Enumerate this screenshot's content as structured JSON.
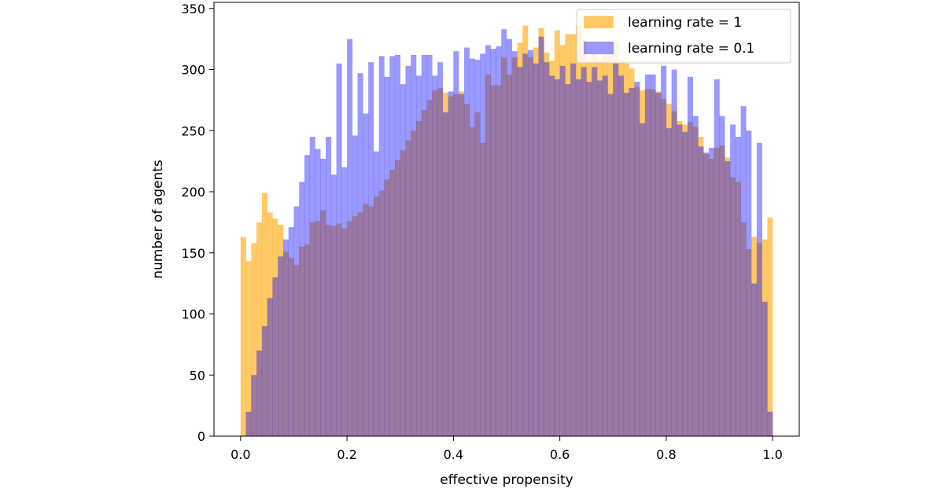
{
  "chart_data": {
    "type": "histogram",
    "xlabel": "effective propensity",
    "ylabel": "number of agents",
    "xlim": [
      -0.05,
      1.05
    ],
    "ylim": [
      0,
      355
    ],
    "x_ticks": [
      0.0,
      0.2,
      0.4,
      0.6,
      0.8,
      1.0
    ],
    "x_tick_labels": [
      "0.0",
      "0.2",
      "0.4",
      "0.6",
      "0.8",
      "1.0"
    ],
    "y_ticks": [
      0,
      50,
      100,
      150,
      200,
      250,
      300,
      350
    ],
    "y_tick_labels": [
      "0",
      "50",
      "100",
      "150",
      "200",
      "250",
      "300",
      "350"
    ],
    "bins": 100,
    "bin_range": [
      0,
      1
    ],
    "grid": false,
    "legend_position": "top-right",
    "series": [
      {
        "name": "learning rate = 1",
        "color": "#ffa500",
        "alpha": 0.6,
        "values": [
          163,
          143,
          158,
          175,
          199,
          183,
          178,
          173,
          151,
          146,
          140,
          155,
          157,
          175,
          176,
          185,
          173,
          172,
          174,
          170,
          176,
          180,
          183,
          190,
          188,
          196,
          201,
          210,
          218,
          226,
          234,
          242,
          250,
          258,
          267,
          275,
          283,
          285,
          281,
          278,
          280,
          282,
          272,
          253,
          265,
          240,
          296,
          287,
          287,
          310,
          296,
          310,
          322,
          336,
          310,
          318,
          334,
          314,
          307,
          332,
          320,
          329,
          329,
          336,
          324,
          308,
          313,
          308,
          312,
          313,
          322,
          308,
          305,
          301,
          286,
          283,
          284,
          284,
          282,
          276,
          272,
          266,
          258,
          255,
          257,
          253,
          245,
          231,
          227,
          236,
          238,
          228,
          212,
          208,
          175,
          153,
          163,
          158,
          161,
          179
        ]
      },
      {
        "name": "learning rate = 0.1",
        "color": "#0000ff",
        "alpha": 0.4,
        "values": [
          0,
          20,
          50,
          70,
          90,
          113,
          130,
          147,
          161,
          171,
          188,
          208,
          230,
          245,
          235,
          227,
          245,
          214,
          305,
          220,
          325,
          246,
          297,
          264,
          306,
          233,
          311,
          294,
          311,
          312,
          288,
          303,
          312,
          295,
          312,
          312,
          295,
          306,
          265,
          282,
          315,
          280,
          318,
          309,
          308,
          313,
          320,
          317,
          319,
          333,
          325,
          315,
          302,
          313,
          316,
          305,
          327,
          306,
          295,
          292,
          303,
          288,
          305,
          292,
          302,
          290,
          302,
          291,
          295,
          280,
          305,
          295,
          281,
          285,
          290,
          256,
          296,
          296,
          281,
          303,
          252,
          300,
          255,
          249,
          294,
          262,
          237,
          232,
          236,
          292,
          262,
          225,
          255,
          245,
          270,
          250,
          125,
          240,
          110,
          20
        ]
      }
    ]
  }
}
